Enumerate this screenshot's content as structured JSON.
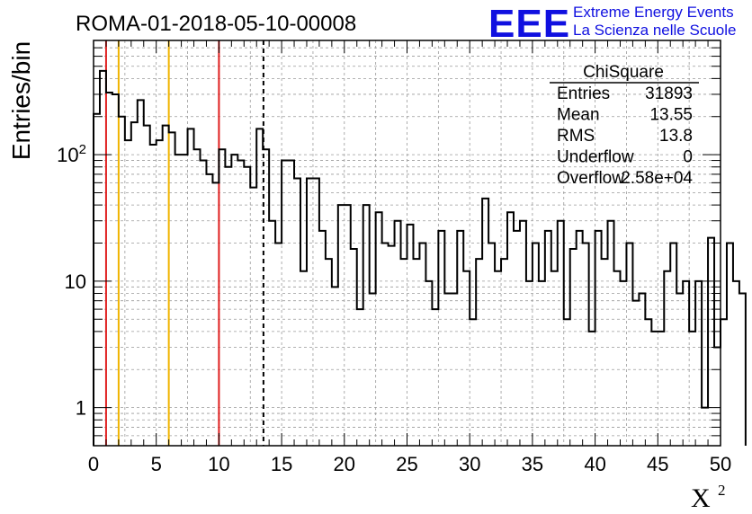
{
  "chart_data": {
    "type": "histogram",
    "title": "ROMA-01-2018-05-10-00008",
    "xlabel": "X",
    "xlabel_superscript": "2",
    "ylabel": "Entries/bin",
    "xlim": [
      0,
      50
    ],
    "ylim": [
      0.5,
      800
    ],
    "y_scale": "log",
    "grid": true,
    "bin_width": 0.5,
    "x_ticks": [
      "0",
      "5",
      "10",
      "15",
      "20",
      "25",
      "30",
      "35",
      "40",
      "45",
      "50"
    ],
    "y_ticks": [
      "1",
      "10",
      "10^2"
    ],
    "counts": [
      210,
      460,
      310,
      300,
      200,
      130,
      180,
      270,
      170,
      120,
      130,
      170,
      150,
      100,
      100,
      160,
      110,
      90,
      70,
      60,
      110,
      80,
      100,
      90,
      80,
      55,
      160,
      110,
      30,
      20,
      90,
      90,
      65,
      12,
      65,
      65,
      25,
      15,
      9,
      40,
      40,
      18,
      6,
      40,
      8,
      35,
      20,
      19,
      30,
      15,
      28,
      15,
      20,
      10,
      6,
      25,
      8,
      8,
      25,
      12,
      5,
      15,
      45,
      20,
      12,
      15,
      35,
      25,
      30,
      10,
      20,
      10,
      25,
      12,
      30,
      5,
      18,
      25,
      20,
      4,
      25,
      15,
      30,
      12,
      10,
      20,
      7,
      8,
      5,
      4,
      4,
      12,
      20,
      8,
      10,
      4,
      10,
      1,
      22,
      3,
      5,
      20,
      10,
      8
    ],
    "vertical_lines": [
      {
        "x": 1,
        "color": "#e02020",
        "style": "solid"
      },
      {
        "x": 2,
        "color": "#f0b400",
        "style": "solid"
      },
      {
        "x": 6,
        "color": "#f0b400",
        "style": "solid"
      },
      {
        "x": 10,
        "color": "#e02020",
        "style": "solid"
      },
      {
        "x": 13.55,
        "color": "#000000",
        "style": "dashed"
      }
    ],
    "line_color": "#000000"
  },
  "stats": {
    "name": "ChiSquare",
    "rows": [
      {
        "label": "Entries",
        "value": "31893"
      },
      {
        "label": "Mean",
        "value": "13.55"
      },
      {
        "label": "RMS",
        "value": "13.8"
      },
      {
        "label": "Underflow",
        "value": "0"
      },
      {
        "label": "Overflow",
        "value": "2.58e+04"
      }
    ]
  },
  "logo": {
    "text": "EEE",
    "line1": "Extreme Energy Events",
    "line2": "La Scienza nelle Scuole",
    "color": "#1010e0"
  }
}
